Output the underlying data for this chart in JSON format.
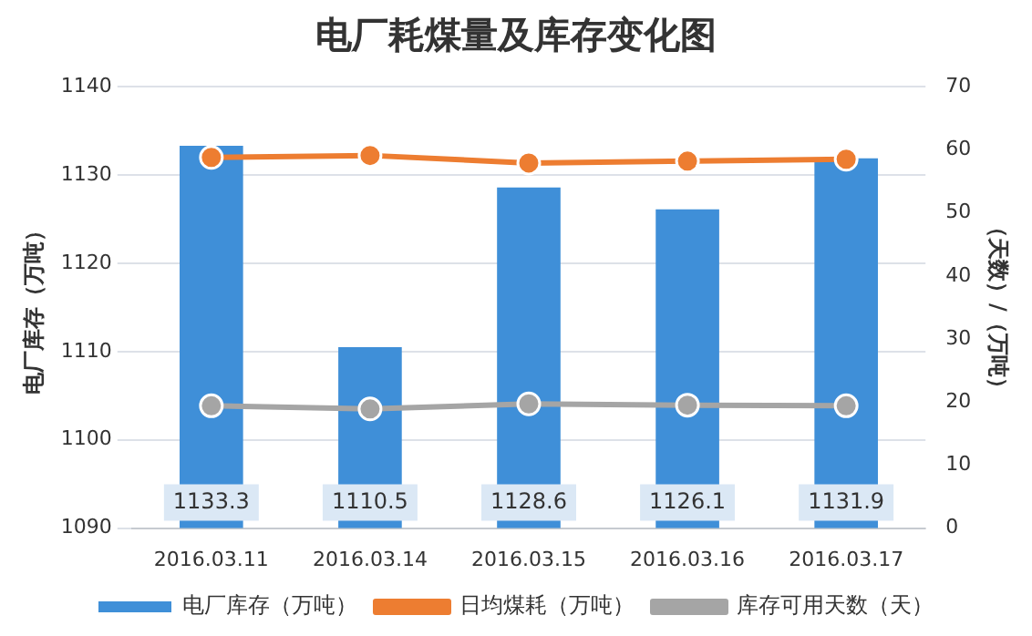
{
  "chart_data": {
    "type": "bar",
    "title": "电厂耗煤量及库存变化图",
    "ylabel": "电厂库存（万吨）",
    "y2label": "（天数）/（万吨）",
    "categories": [
      "2016.03.11",
      "2016.03.14",
      "2016.03.15",
      "2016.03.16",
      "2016.03.17"
    ],
    "series": [
      {
        "name": "电厂库存（万吨）",
        "color": "#3f8fd8",
        "values": [
          1133.3,
          1110.5,
          1128.6,
          1126.1,
          1131.9
        ],
        "value_labels": [
          "1133.3",
          "1110.5",
          "1128.6",
          "1126.1",
          "1131.9"
        ]
      },
      {
        "name": "日均煤耗（万吨）",
        "type": "line",
        "axis": "y2",
        "color": "#ed7d31",
        "values": [
          58.8,
          59.1,
          57.9,
          58.2,
          58.5
        ]
      },
      {
        "name": "库存可用天数（天）",
        "type": "line",
        "axis": "y2",
        "color": "#a5a5a5",
        "values": [
          19.4,
          18.9,
          19.7,
          19.5,
          19.4
        ]
      }
    ],
    "ylim": [
      1090,
      1140
    ],
    "yticks": [
      1090,
      1100,
      1110,
      1120,
      1130,
      1140
    ],
    "y2lim": [
      0,
      70
    ],
    "y2ticks": [
      0,
      10,
      20,
      30,
      40,
      50,
      60,
      70
    ],
    "grid": "y",
    "legend": "bottom",
    "marker": "circle",
    "line_style": "solid"
  }
}
